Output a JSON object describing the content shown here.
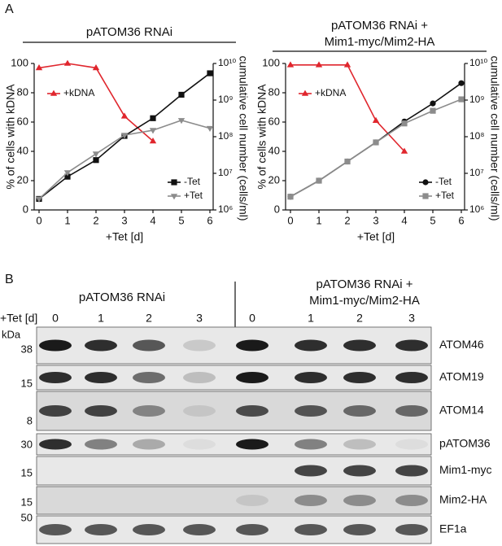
{
  "panel_labels": [
    "A",
    "B"
  ],
  "chart_data": [
    {
      "type": "line",
      "title": "pATOM36 RNAi",
      "xlabel": "+Tet [d]",
      "ylabel": "% of cells with kDNA",
      "y2label": "cumulative cell number (cells/ml)",
      "x": [
        0,
        1,
        2,
        3,
        4,
        5,
        6
      ],
      "xlim": [
        0,
        6
      ],
      "xticks": [
        0,
        1,
        2,
        3,
        4,
        5,
        6
      ],
      "ylim": [
        0,
        100
      ],
      "yticks": [
        0,
        20,
        40,
        60,
        80,
        100
      ],
      "y2lim": [
        1000000,
        10000000000
      ],
      "y2scale": "log",
      "y2ticks": [
        {
          "value": 1000000,
          "label": "10⁶"
        },
        {
          "value": 10000000,
          "label": "10⁷"
        },
        {
          "value": 100000000,
          "label": "10⁸"
        },
        {
          "value": 1000000000,
          "label": "10⁹"
        },
        {
          "value": 10000000000,
          "label": "10¹⁰"
        }
      ],
      "series": [
        {
          "name": "+kDNA",
          "color": "#e0262d",
          "marker": "triangle-up",
          "legend": "upper left",
          "values": [
            97,
            100,
            97,
            64,
            47,
            null,
            null
          ]
        },
        {
          "name": "-Tet",
          "color": "#111111",
          "marker": "square",
          "axis": "y2",
          "legend": "lower right",
          "values": [
            2000000,
            8100000,
            23000000,
            105000000,
            320000000,
            1400000000,
            5400000000
          ]
        },
        {
          "name": "+Tet",
          "color": "#8c8c8c",
          "marker": "triangle-down",
          "axis": "y2",
          "legend": "lower right",
          "values": [
            2000000,
            10500000,
            34000000,
            110000000,
            150000000,
            280000000,
            170000000
          ]
        }
      ]
    },
    {
      "type": "line",
      "title": [
        "pATOM36 RNAi +",
        "Mim1-myc/Mim2-HA"
      ],
      "xlabel": "+Tet [d]",
      "ylabel": "% of cells with kDNA",
      "y2label": "cumulative cell number (cells/ml)",
      "x": [
        0,
        1,
        2,
        3,
        4,
        5,
        6
      ],
      "xlim": [
        0,
        6
      ],
      "xticks": [
        0,
        1,
        2,
        3,
        4,
        5,
        6
      ],
      "ylim": [
        0,
        100
      ],
      "yticks": [
        0,
        20,
        40,
        60,
        80,
        100
      ],
      "y2lim": [
        1000000,
        10000000000
      ],
      "y2scale": "log",
      "y2ticks": [
        {
          "value": 1000000,
          "label": "10⁶"
        },
        {
          "value": 10000000,
          "label": "10⁷"
        },
        {
          "value": 100000000,
          "label": "10⁸"
        },
        {
          "value": 1000000000,
          "label": "10⁹"
        },
        {
          "value": 10000000000,
          "label": "10¹⁰"
        }
      ],
      "series": [
        {
          "name": "+kDNA",
          "color": "#e0262d",
          "marker": "triangle-up",
          "legend": "upper left",
          "values": [
            99,
            99,
            99,
            61,
            40,
            null,
            null
          ]
        },
        {
          "name": "-Tet",
          "color": "#111111",
          "marker": "circle",
          "axis": "y2",
          "legend": "lower right",
          "values": [
            2300000,
            6300000,
            21000000,
            70000000,
            260000000,
            810000000,
            2900000000
          ]
        },
        {
          "name": "+Tet",
          "color": "#8c8c8c",
          "marker": "square",
          "axis": "y2",
          "legend": "lower right",
          "values": [
            2300000,
            6300000,
            21000000,
            70000000,
            230000000,
            510000000,
            1050000000
          ]
        }
      ]
    }
  ],
  "blot": {
    "title_left": "pATOM36 RNAi",
    "title_right": [
      "pATOM36 RNAi +",
      "Mim1-myc/Mim2-HA"
    ],
    "tet_label": "+Tet [d]",
    "lanes": [
      "0",
      "1",
      "2",
      "3",
      "0",
      "1",
      "2",
      "3"
    ],
    "kda_label": "kDa",
    "rows": [
      {
        "name": "ATOM46",
        "size": "38"
      },
      {
        "name": "ATOM19",
        "size": "15"
      },
      {
        "name": "ATOM14",
        "size": "8"
      },
      {
        "name": "pATOM36",
        "size": "30"
      },
      {
        "name": "Mim1-myc",
        "size": "15"
      },
      {
        "name": "Mim2-HA",
        "size": "15"
      },
      {
        "name": "EF1a",
        "size": "50"
      }
    ]
  }
}
